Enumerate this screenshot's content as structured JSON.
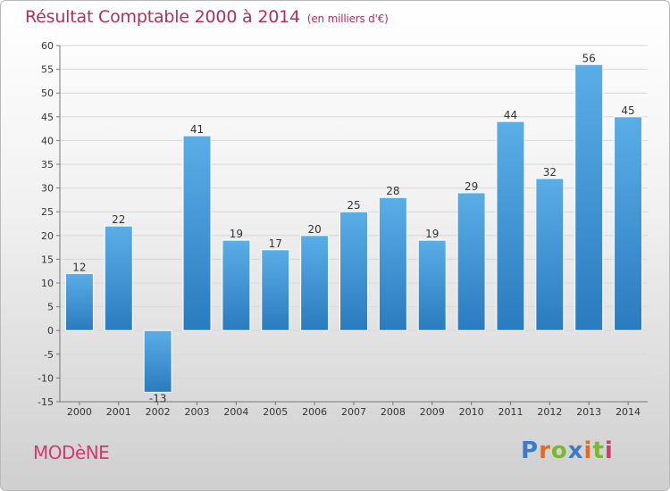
{
  "header": {
    "title": "Résultat Comptable 2000 à 2014",
    "subtitle": "(en milliers d'€)"
  },
  "footer": {
    "commune": "MODèNE",
    "logo_text": "Proxiti",
    "logo_colors": [
      "#3b7dc4",
      "#e8681c",
      "#7cb82f",
      "#3b7dc4",
      "#e8681c",
      "#7cb82f",
      "#d13a6a"
    ]
  },
  "colors": {
    "bar_light": "#5aaee6",
    "bar_dark": "#2a7bbf",
    "title": "#b0305a"
  },
  "chart_data": {
    "type": "bar",
    "categories": [
      "2000",
      "2001",
      "2002",
      "2003",
      "2004",
      "2005",
      "2006",
      "2007",
      "2008",
      "2009",
      "2010",
      "2011",
      "2012",
      "2013",
      "2014"
    ],
    "values": [
      12,
      22,
      -13,
      41,
      19,
      17,
      20,
      25,
      28,
      19,
      29,
      44,
      32,
      56,
      45
    ],
    "data_labels": [
      "12",
      "22",
      "-13",
      "41",
      "19",
      "17",
      "20",
      "25",
      "28",
      "19",
      "29",
      "44",
      "32",
      "56",
      "45"
    ],
    "ylim": [
      -15,
      60
    ],
    "yticks": [
      -15,
      -10,
      -5,
      0,
      5,
      10,
      15,
      20,
      25,
      30,
      35,
      40,
      45,
      50,
      55,
      60
    ],
    "ytick_labels": [
      "-15",
      "-10",
      "-5",
      "0",
      "5",
      "10",
      "15",
      "20",
      "25",
      "30",
      "35",
      "40",
      "45",
      "50",
      "55",
      "60"
    ],
    "grid": true
  }
}
